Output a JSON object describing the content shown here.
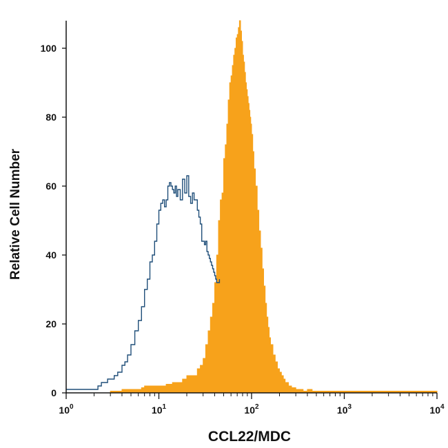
{
  "chart_data": {
    "type": "area",
    "title": "",
    "xlabel": "CCL22/MDC",
    "ylabel": "Relative Cell Number",
    "x_scale": "log",
    "xlim": [
      1,
      10000
    ],
    "ylim": [
      0,
      108
    ],
    "x_ticks": [
      1,
      10,
      100,
      1000,
      10000
    ],
    "x_tick_labels": [
      {
        "base": "10",
        "exp": "0"
      },
      {
        "base": "10",
        "exp": "1"
      },
      {
        "base": "10",
        "exp": "2"
      },
      {
        "base": "10",
        "exp": "3"
      },
      {
        "base": "10",
        "exp": "4"
      }
    ],
    "y_ticks": [
      0,
      20,
      40,
      60,
      80,
      100
    ],
    "grid": false,
    "legend": "none",
    "series": [
      {
        "style": "outline",
        "color": "#1f4e79",
        "x": [
          1,
          2.2,
          2.4,
          2.6,
          2.8,
          3.0,
          3.3,
          3.6,
          4.0,
          4.3,
          4.6,
          5.0,
          5.5,
          6.0,
          6.5,
          7.0,
          7.5,
          8.0,
          8.5,
          9.0,
          9.5,
          10.0,
          10.5,
          11.0,
          11.5,
          12.0,
          12.5,
          13.0,
          13.5,
          14.0,
          14.5,
          15.0,
          15.5,
          16.0,
          17.0,
          18.0,
          19.0,
          20.0,
          21.0,
          22.0,
          23.0,
          24.0,
          25.0,
          26.0,
          27.0,
          28.0,
          29.0,
          30.0,
          31.0,
          32.0,
          33.0,
          34.0,
          35.0,
          36.0,
          37.0,
          38.0,
          39.0,
          40.0,
          41.0,
          42.0,
          43.0,
          45.0
        ],
        "y": [
          1,
          2,
          3,
          3,
          4,
          4,
          5,
          6,
          8,
          9,
          11,
          14,
          18,
          21,
          25,
          30,
          33,
          38,
          40,
          44,
          49,
          53,
          55,
          56,
          54,
          56,
          60,
          61,
          60,
          59,
          58,
          60,
          57,
          59,
          56,
          62,
          58,
          63,
          57,
          55,
          58,
          56,
          56,
          53,
          51,
          49,
          44,
          44,
          43,
          44,
          41,
          40,
          39,
          38,
          37,
          36,
          35,
          34,
          33,
          32,
          32,
          33
        ]
      },
      {
        "style": "filled",
        "color": "#f7a21b",
        "x": [
          3.0,
          3.5,
          4.0,
          4.5,
          5.0,
          5.5,
          6.0,
          6.5,
          7.0,
          8.0,
          9.0,
          10.0,
          11.0,
          12.0,
          13.0,
          14.0,
          15.0,
          16.0,
          17.0,
          18.0,
          19.0,
          20.0,
          22.0,
          24.0,
          26.0,
          28.0,
          30.0,
          32.0,
          34.0,
          36.0,
          38.0,
          40.0,
          42.0,
          44.0,
          46.0,
          48.0,
          50.0,
          52.0,
          54.0,
          56.0,
          58.0,
          60.0,
          62.0,
          64.0,
          66.0,
          68.0,
          70.0,
          72.0,
          74.0,
          76.0,
          78.0,
          80.0,
          82.0,
          84.0,
          86.0,
          88.0,
          90.0,
          92.0,
          94.0,
          96.0,
          98.0,
          100.0,
          103.0,
          106.0,
          110.0,
          115.0,
          120.0,
          125.0,
          130.0,
          135.0,
          140.0,
          145.0,
          150.0,
          155.0,
          160.0,
          170.0,
          180.0,
          190.0,
          200.0,
          210.0,
          220.0,
          230.0,
          250.0,
          270.0,
          300.0,
          330.0,
          360.0,
          400.0,
          420.0,
          450.0,
          10000
        ],
        "y": [
          0.5,
          0.5,
          1,
          1,
          1,
          1,
          1,
          1.5,
          2,
          2,
          2,
          2,
          2,
          2.5,
          2.5,
          3,
          3,
          3,
          3,
          4,
          4,
          5,
          5,
          5,
          7,
          8,
          10,
          14,
          18,
          22,
          26,
          32,
          40,
          50,
          56,
          58,
          68,
          72,
          78,
          85,
          90,
          92,
          95,
          98,
          100,
          103,
          104,
          106,
          108,
          105,
          102,
          98,
          96,
          93,
          90,
          88,
          86,
          84,
          82,
          80,
          78,
          75,
          70,
          65,
          60,
          53,
          47,
          42,
          36,
          31,
          26,
          22,
          19,
          16,
          14,
          11,
          9,
          7,
          6,
          5,
          4,
          3,
          2,
          1.5,
          1,
          1,
          0.5,
          1,
          1,
          0.5,
          0.5
        ]
      }
    ]
  }
}
